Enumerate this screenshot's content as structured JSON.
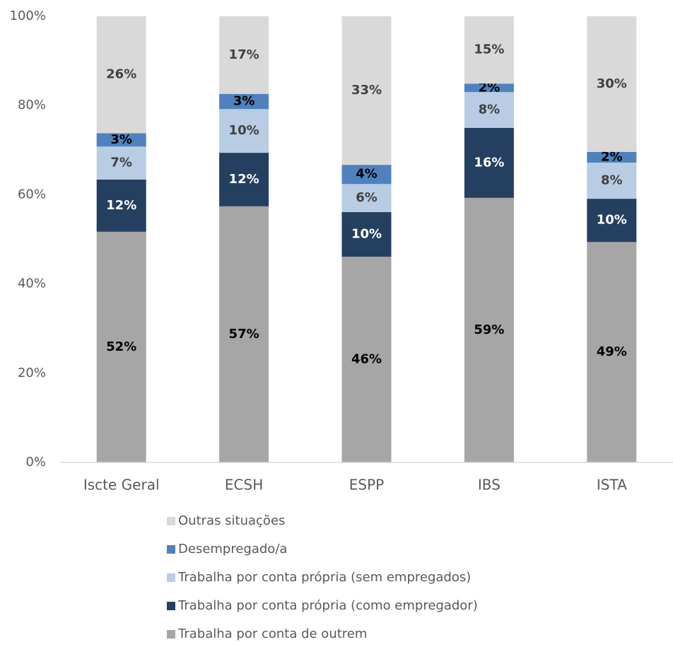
{
  "chart_data": {
    "type": "stacked_bar",
    "categories": [
      "Iscte Geral",
      "ECSH",
      "ESPP",
      "IBS",
      "ISTA"
    ],
    "series": [
      {
        "name": "Trabalha por conta de outrem",
        "color": "#a6a6a6",
        "values": [
          51.7,
          57.4,
          46.1,
          59.3,
          49.4
        ],
        "value_labels": [
          "52%",
          "57%",
          "46%",
          "59%",
          "49%"
        ]
      },
      {
        "name": "Trabalha por conta própria (como empregador)",
        "color": "#243f60",
        "values": [
          11.7,
          12.0,
          10.0,
          15.7,
          9.7
        ],
        "value_labels": [
          "12%",
          "12%",
          "10%",
          "16%",
          "10%"
        ]
      },
      {
        "name": "Trabalha por conta própria (sem empregados)",
        "color": "#b8cce4",
        "values": [
          7.4,
          9.8,
          6.3,
          8.0,
          8.1
        ],
        "value_labels": [
          "7%",
          "10%",
          "6%",
          "8%",
          "8%"
        ]
      },
      {
        "name": "Desempregado/a",
        "color": "#4f81bd",
        "values": [
          3.0,
          3.4,
          4.3,
          1.9,
          2.4
        ],
        "value_labels": [
          "3%",
          "3%",
          "4%",
          "2%",
          "2%"
        ]
      },
      {
        "name": "Outras situações",
        "color": "#d9d9d9",
        "values": [
          26.2,
          17.4,
          33.3,
          15.1,
          30.4
        ],
        "value_labels": [
          "26%",
          "17%",
          "33%",
          "15%",
          "30%"
        ]
      }
    ],
    "ylim": [
      0,
      100
    ],
    "yticks": [
      {
        "value": 0,
        "label": "0%"
      },
      {
        "value": 20,
        "label": "20%"
      },
      {
        "value": 40,
        "label": "40%"
      },
      {
        "value": 60,
        "label": "60%"
      },
      {
        "value": 80,
        "label": "80%"
      },
      {
        "value": 100,
        "label": "100%"
      }
    ],
    "grid": false,
    "legend": "bottom"
  }
}
